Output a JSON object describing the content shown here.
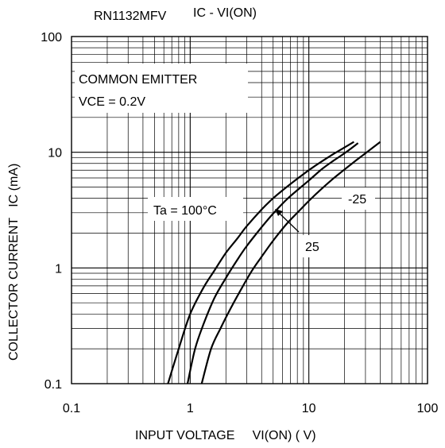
{
  "chart_data": {
    "type": "line",
    "title_part": "RN1132MFV",
    "title_curve": "IC  -  VI(ON)",
    "xlabel": "INPUT VOLTAGE     VI(ON) ( V)",
    "ylabel": "COLLECTOR CURRENT   IC (mA)",
    "x_scale": "log",
    "y_scale": "log",
    "xlim": [
      0.1,
      100
    ],
    "ylim": [
      0.1,
      100
    ],
    "x_ticks": [
      {
        "value": 0.1,
        "label": "0.1"
      },
      {
        "value": 1,
        "label": "1"
      },
      {
        "value": 10,
        "label": "10"
      },
      {
        "value": 100,
        "label": "100"
      }
    ],
    "y_ticks": [
      {
        "value": 0.1,
        "label": "0.1"
      },
      {
        "value": 1,
        "label": "1"
      },
      {
        "value": 10,
        "label": "10"
      },
      {
        "value": 100,
        "label": "100"
      }
    ],
    "grid": true,
    "condition_lines": [
      "COMMON EMITTER",
      "VCE = 0.2V"
    ],
    "series": [
      {
        "name": "Ta = 100°C",
        "x": [
          0.65,
          0.8,
          1.0,
          1.3,
          1.6,
          2.0,
          2.5,
          3.0,
          4.0,
          5.0,
          6.5,
          8.0,
          10,
          13,
          16,
          20,
          24
        ],
        "y": [
          0.1,
          0.2,
          0.4,
          0.68,
          0.95,
          1.35,
          1.8,
          2.3,
          3.2,
          4.0,
          5.0,
          5.9,
          7.0,
          8.4,
          9.6,
          11.0,
          12.3
        ]
      },
      {
        "name": "25",
        "x": [
          0.95,
          1.1,
          1.3,
          1.6,
          2.0,
          2.5,
          3.0,
          4.0,
          5.0,
          6.5,
          8.0,
          10,
          13,
          16,
          20,
          26
        ],
        "y": [
          0.1,
          0.2,
          0.33,
          0.55,
          0.82,
          1.18,
          1.55,
          2.25,
          2.95,
          3.9,
          4.7,
          5.7,
          7.2,
          8.4,
          9.8,
          12.0
        ]
      },
      {
        "name": "-25",
        "x": [
          1.25,
          1.5,
          1.8,
          2.2,
          2.7,
          3.3,
          4.0,
          5.0,
          6.5,
          8.0,
          10,
          13,
          16,
          20,
          25,
          32,
          40
        ],
        "y": [
          0.1,
          0.2,
          0.3,
          0.45,
          0.66,
          0.94,
          1.25,
          1.72,
          2.4,
          3.0,
          3.8,
          4.9,
          5.9,
          7.1,
          8.5,
          10.3,
          12.3
        ]
      }
    ],
    "curve_labels": [
      {
        "series": "Ta = 100°C",
        "text": "Ta = 100°C"
      },
      {
        "series": "25",
        "text": "25"
      },
      {
        "series": "-25",
        "text": "-25"
      }
    ]
  }
}
